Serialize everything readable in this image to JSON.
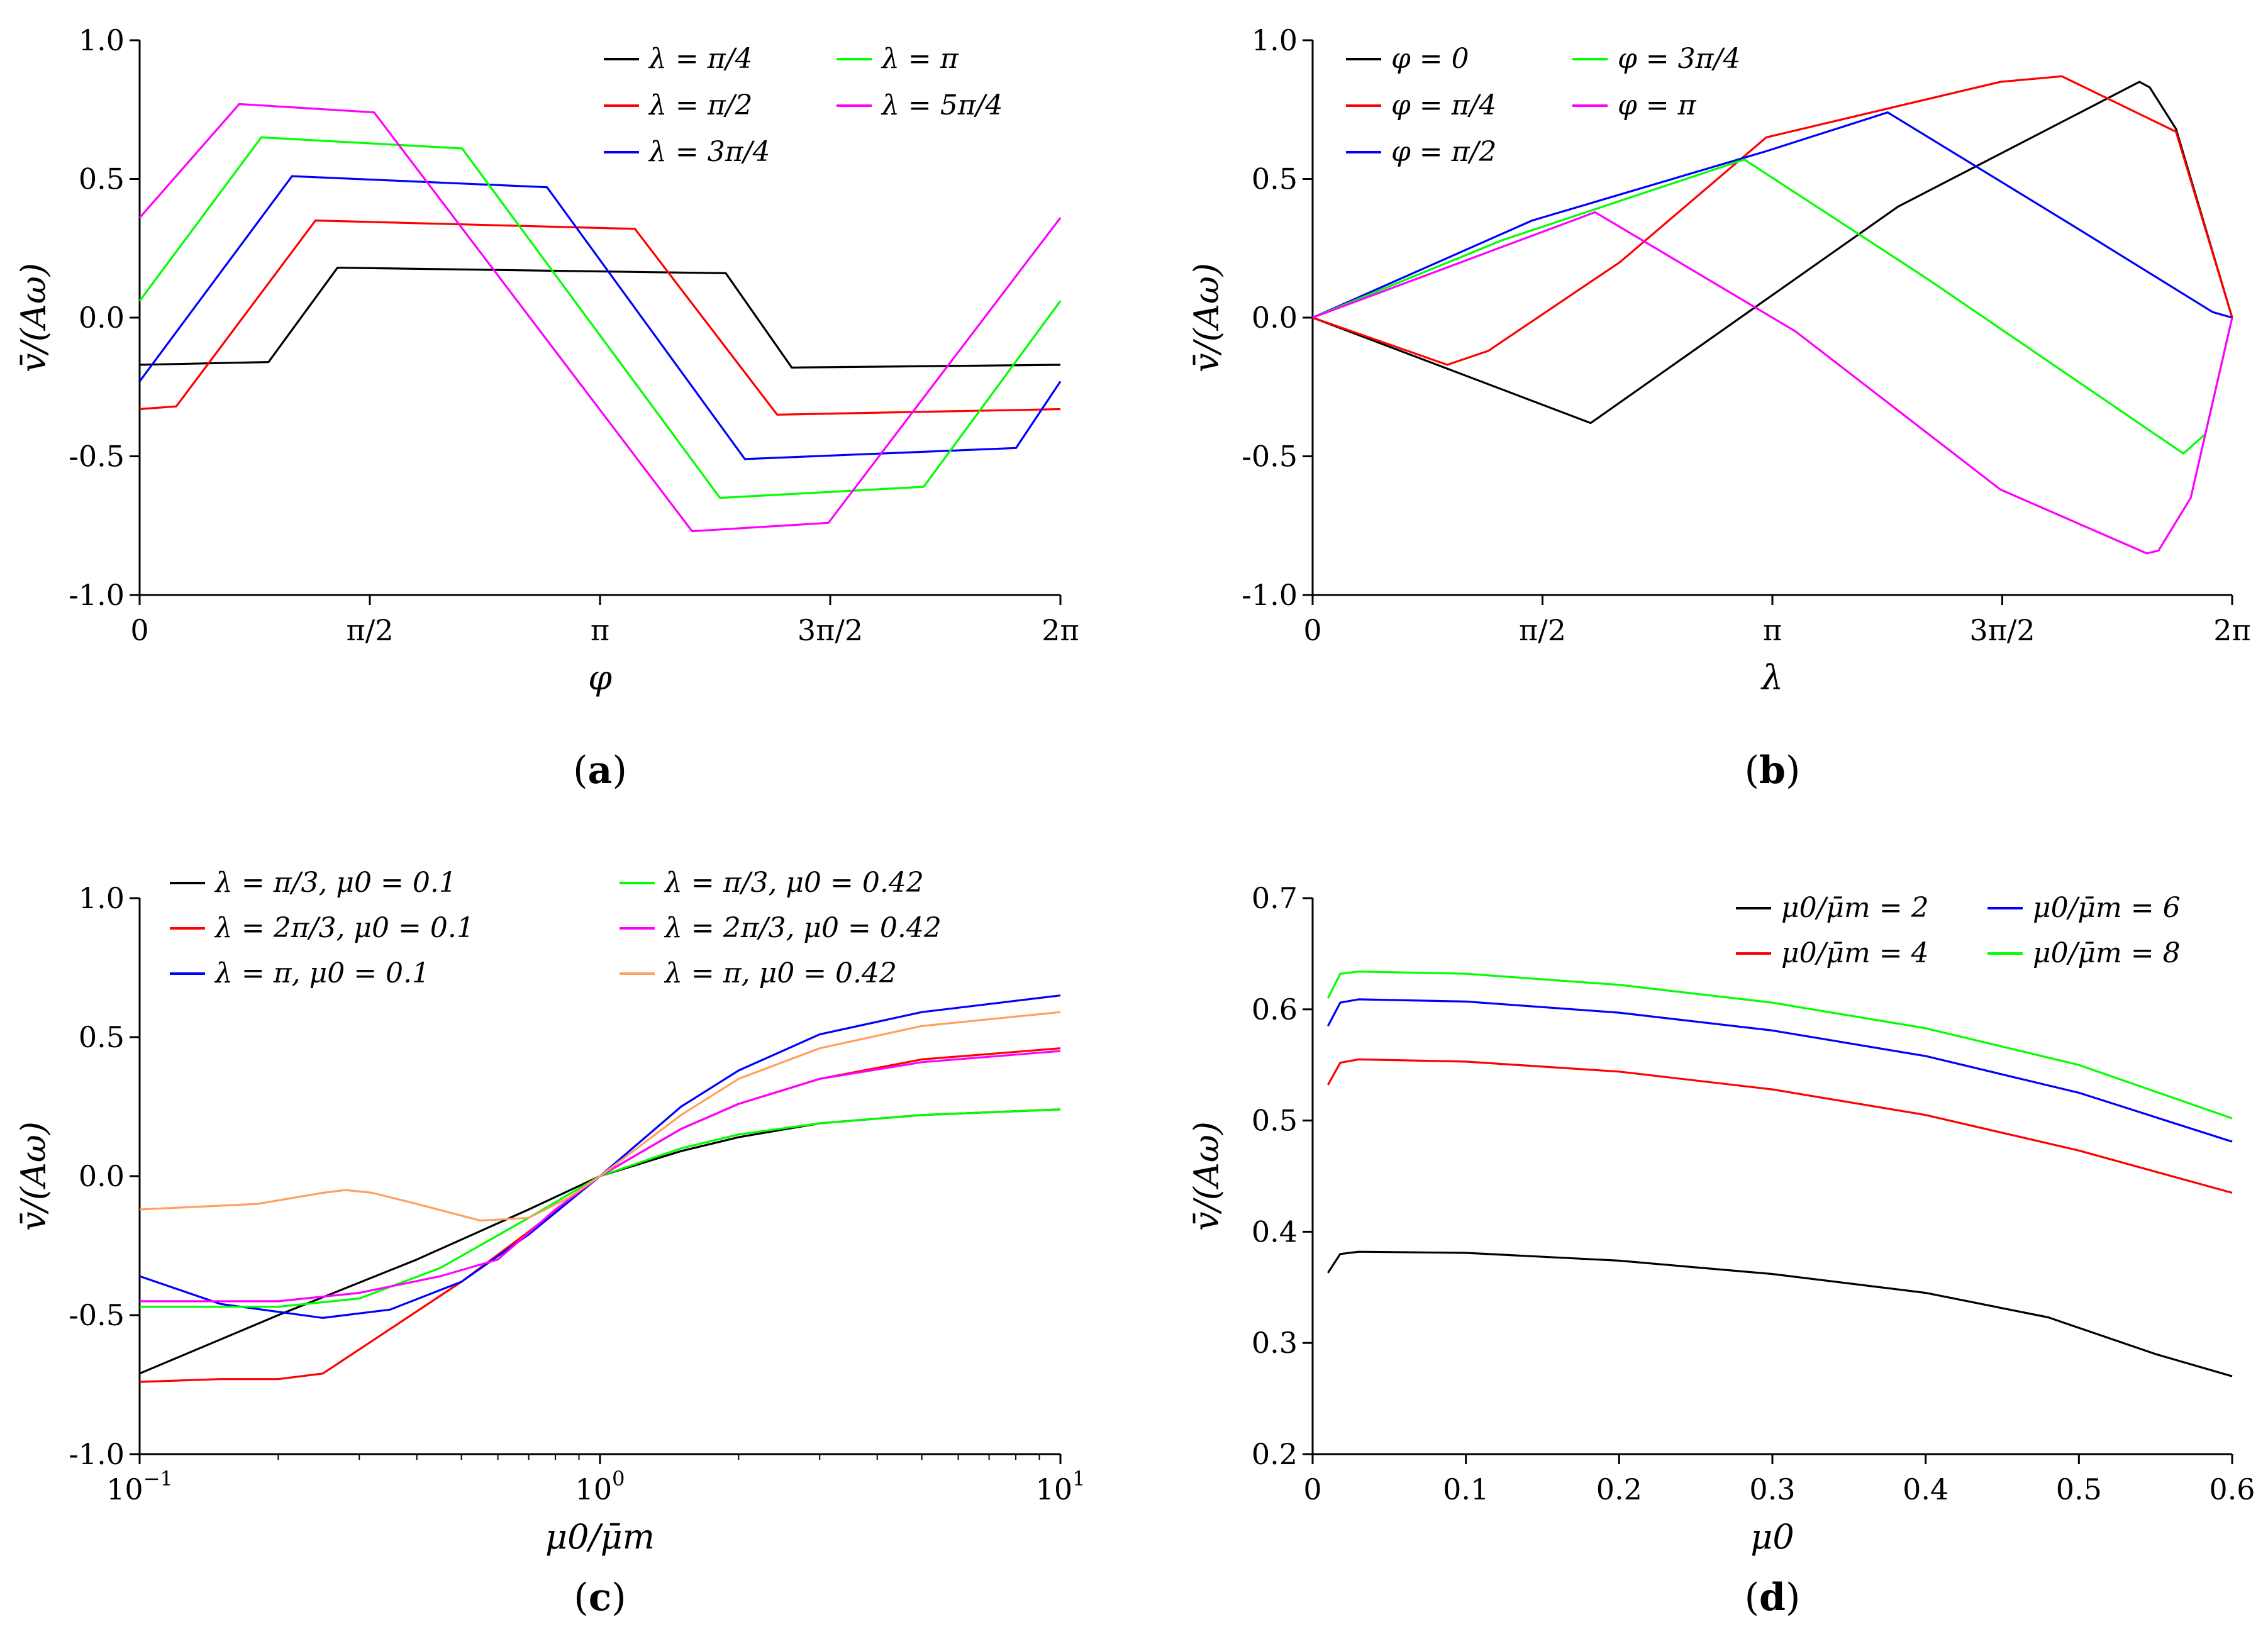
{
  "figure": {
    "captions": [
      "(a)",
      "(b)",
      "(c)",
      "(d)"
    ]
  },
  "chart_data": [
    {
      "type": "line",
      "panel": "a",
      "xlabel": "φ",
      "ylabel": "v̄/(Aω)",
      "xlim": [
        0,
        6.2832
      ],
      "ylim": [
        -1.0,
        1.0
      ],
      "xticks": [
        {
          "v": 0,
          "label": "0"
        },
        {
          "v": 1.5708,
          "label": "π/2"
        },
        {
          "v": 3.1416,
          "label": "π"
        },
        {
          "v": 4.7124,
          "label": "3π/2"
        },
        {
          "v": 6.2832,
          "label": "2π"
        }
      ],
      "yticks": [
        {
          "v": 1.0,
          "label": "1.0"
        },
        {
          "v": 0.5,
          "label": "0.5"
        },
        {
          "v": 0.0,
          "label": "0.0"
        },
        {
          "v": -0.5,
          "label": "-0.5"
        },
        {
          "v": -1.0,
          "label": "-1.0"
        }
      ],
      "legend_position": "top-right",
      "legend_columns": 2,
      "series": [
        {
          "name": "λ = π/4",
          "color": "#000000",
          "x": [
            0,
            0.88,
            1.35,
            4.0,
            4.45,
            6.2832
          ],
          "y": [
            -0.17,
            -0.16,
            0.18,
            0.16,
            -0.18,
            -0.17
          ]
        },
        {
          "name": "λ = π/2",
          "color": "#ff0000",
          "x": [
            0,
            0.25,
            1.2,
            3.38,
            4.35,
            6.2832
          ],
          "y": [
            -0.33,
            -0.32,
            0.35,
            0.32,
            -0.35,
            -0.33
          ]
        },
        {
          "name": "λ = 3π/4",
          "color": "#0000ff",
          "x": [
            0,
            1.04,
            2.78,
            4.13,
            5.98,
            6.2832
          ],
          "y": [
            -0.23,
            0.51,
            0.47,
            -0.51,
            -0.47,
            -0.23
          ]
        },
        {
          "name": "λ = π",
          "color": "#00ff00",
          "x": [
            0,
            0.83,
            2.2,
            3.96,
            5.35,
            6.2832
          ],
          "y": [
            0.06,
            0.65,
            0.61,
            -0.65,
            -0.61,
            0.06
          ]
        },
        {
          "name": "λ = 5π/4",
          "color": "#ff00ff",
          "x": [
            0,
            0.68,
            1.6,
            3.77,
            4.7,
            6.2832
          ],
          "y": [
            0.36,
            0.77,
            0.74,
            -0.77,
            -0.74,
            0.36
          ]
        }
      ]
    },
    {
      "type": "line",
      "panel": "b",
      "xlabel": "λ",
      "ylabel": "v̄/(Aω)",
      "xlim": [
        0,
        6.2832
      ],
      "ylim": [
        -1.0,
        1.0
      ],
      "xticks": [
        {
          "v": 0,
          "label": "0"
        },
        {
          "v": 1.5708,
          "label": "π/2"
        },
        {
          "v": 3.1416,
          "label": "π"
        },
        {
          "v": 4.7124,
          "label": "3π/2"
        },
        {
          "v": 6.2832,
          "label": "2π"
        }
      ],
      "yticks": [
        {
          "v": 1.0,
          "label": "1.0"
        },
        {
          "v": 0.5,
          "label": "0.5"
        },
        {
          "v": 0.0,
          "label": "0.0"
        },
        {
          "v": -0.5,
          "label": "-0.5"
        },
        {
          "v": -1.0,
          "label": "-1.0"
        }
      ],
      "legend_position": "top-left",
      "legend_columns": 2,
      "series": [
        {
          "name": "φ = 0",
          "color": "#000000",
          "x": [
            0,
            1.9,
            4.0,
            5.65,
            5.72,
            5.9,
            6.2832
          ],
          "y": [
            0,
            -0.38,
            0.4,
            0.85,
            0.83,
            0.68,
            0
          ]
        },
        {
          "name": "φ = π/4",
          "color": "#ff0000",
          "x": [
            0,
            0.92,
            1.2,
            2.1,
            3.1,
            4.7,
            5.12,
            5.9,
            6.2832
          ],
          "y": [
            0,
            -0.17,
            -0.12,
            0.2,
            0.65,
            0.85,
            0.87,
            0.67,
            0
          ]
        },
        {
          "name": "φ = π/2",
          "color": "#0000ff",
          "x": [
            0,
            1.5,
            3.1,
            3.93,
            5.2,
            6.15,
            6.2832
          ],
          "y": [
            0,
            0.35,
            0.6,
            0.74,
            0.33,
            0.02,
            0
          ]
        },
        {
          "name": "φ = 3π/4",
          "color": "#00ff00",
          "x": [
            0,
            1.3,
            2.95,
            4.2,
            5.95,
            6.1,
            6.2832
          ],
          "y": [
            0,
            0.28,
            0.57,
            0.14,
            -0.49,
            -0.42,
            0
          ]
        },
        {
          "name": "φ = π",
          "color": "#ff00ff",
          "x": [
            0,
            1.93,
            3.3,
            4.7,
            5.7,
            5.78,
            6.0,
            6.2832
          ],
          "y": [
            0,
            0.38,
            -0.05,
            -0.62,
            -0.85,
            -0.84,
            -0.65,
            0
          ]
        }
      ]
    },
    {
      "type": "line",
      "panel": "c",
      "xscale": "log",
      "xlabel": "μ0/μ̄m",
      "ylabel": "v̄/(Aω)",
      "xlim": [
        0.1,
        10
      ],
      "ylim": [
        -1.0,
        1.0
      ],
      "xticks": [
        {
          "v": 0.1,
          "base": "10",
          "exp": "−1"
        },
        {
          "v": 1,
          "base": "10",
          "exp": "0"
        },
        {
          "v": 10,
          "base": "10",
          "exp": "1"
        }
      ],
      "yticks": [
        {
          "v": 1.0,
          "label": "1.0"
        },
        {
          "v": 0.5,
          "label": "0.5"
        },
        {
          "v": 0.0,
          "label": "0.0"
        },
        {
          "v": -0.5,
          "label": "-0.5"
        },
        {
          "v": -1.0,
          "label": "-1.0"
        }
      ],
      "legend_position": "top-left",
      "legend_columns": 2,
      "series": [
        {
          "name": "λ = π/3, μ0 = 0.1",
          "color": "#000000",
          "x": [
            0.1,
            0.2,
            0.4,
            0.7,
            1.0,
            1.5,
            2,
            3,
            5,
            10
          ],
          "y": [
            -0.71,
            -0.5,
            -0.3,
            -0.12,
            0.0,
            0.09,
            0.14,
            0.19,
            0.22,
            0.24
          ]
        },
        {
          "name": "λ = 2π/3, μ0 = 0.1",
          "color": "#ff0000",
          "x": [
            0.1,
            0.15,
            0.2,
            0.25,
            0.35,
            0.5,
            0.7,
            1.0,
            1.5,
            2,
            3,
            5,
            10
          ],
          "y": [
            -0.74,
            -0.73,
            -0.73,
            -0.71,
            -0.55,
            -0.38,
            -0.2,
            0.0,
            0.17,
            0.26,
            0.35,
            0.42,
            0.46
          ]
        },
        {
          "name": "λ = π, μ0 = 0.1",
          "color": "#0000ff",
          "x": [
            0.1,
            0.15,
            0.25,
            0.35,
            0.5,
            0.7,
            1.0,
            1.5,
            2,
            3,
            5,
            10
          ],
          "y": [
            -0.36,
            -0.46,
            -0.51,
            -0.48,
            -0.38,
            -0.21,
            0.0,
            0.25,
            0.38,
            0.51,
            0.59,
            0.65
          ]
        },
        {
          "name": "λ = π/3, μ0 = 0.42",
          "color": "#00ff00",
          "x": [
            0.1,
            0.2,
            0.3,
            0.45,
            0.7,
            1.0,
            1.5,
            2,
            3,
            5,
            10
          ],
          "y": [
            -0.47,
            -0.47,
            -0.44,
            -0.33,
            -0.15,
            0.0,
            0.1,
            0.15,
            0.19,
            0.22,
            0.24
          ]
        },
        {
          "name": "λ = 2π/3, μ0 = 0.42",
          "color": "#ff00ff",
          "x": [
            0.1,
            0.2,
            0.3,
            0.45,
            0.6,
            0.8,
            1.0,
            1.5,
            2,
            3,
            5,
            10
          ],
          "y": [
            -0.45,
            -0.45,
            -0.42,
            -0.36,
            -0.3,
            -0.12,
            0.0,
            0.17,
            0.26,
            0.35,
            0.41,
            0.45
          ]
        },
        {
          "name": "λ = π, μ0 = 0.42",
          "color": "#ffa060",
          "x": [
            0.1,
            0.18,
            0.25,
            0.28,
            0.32,
            0.4,
            0.55,
            0.7,
            0.85,
            1.0,
            1.5,
            2,
            3,
            5,
            10
          ],
          "y": [
            -0.12,
            -0.1,
            -0.06,
            -0.05,
            -0.06,
            -0.1,
            -0.16,
            -0.15,
            -0.08,
            0.0,
            0.22,
            0.35,
            0.46,
            0.54,
            0.59
          ]
        }
      ]
    },
    {
      "type": "line",
      "panel": "d",
      "xlabel": "μ0",
      "ylabel": "v̄/(Aω)",
      "xlim": [
        0,
        0.6
      ],
      "ylim": [
        0.2,
        0.7
      ],
      "xticks": [
        {
          "v": 0,
          "label": "0"
        },
        {
          "v": 0.1,
          "label": "0.1"
        },
        {
          "v": 0.2,
          "label": "0.2"
        },
        {
          "v": 0.3,
          "label": "0.3"
        },
        {
          "v": 0.4,
          "label": "0.4"
        },
        {
          "v": 0.5,
          "label": "0.5"
        },
        {
          "v": 0.6,
          "label": "0.6"
        }
      ],
      "yticks": [
        {
          "v": 0.7,
          "label": "0.7"
        },
        {
          "v": 0.6,
          "label": "0.6"
        },
        {
          "v": 0.5,
          "label": "0.5"
        },
        {
          "v": 0.4,
          "label": "0.4"
        },
        {
          "v": 0.3,
          "label": "0.3"
        },
        {
          "v": 0.2,
          "label": "0.2"
        }
      ],
      "legend_position": "top-right",
      "legend_columns": 2,
      "series": [
        {
          "name": "μ0/μ̄m = 2",
          "color": "#000000",
          "x": [
            0.01,
            0.018,
            0.03,
            0.1,
            0.2,
            0.3,
            0.4,
            0.48,
            0.55,
            0.6
          ],
          "y": [
            0.363,
            0.38,
            0.382,
            0.381,
            0.374,
            0.362,
            0.345,
            0.323,
            0.29,
            0.27
          ]
        },
        {
          "name": "μ0/μ̄m = 4",
          "color": "#ff0000",
          "x": [
            0.01,
            0.018,
            0.03,
            0.1,
            0.2,
            0.3,
            0.4,
            0.5,
            0.6
          ],
          "y": [
            0.532,
            0.552,
            0.555,
            0.553,
            0.544,
            0.528,
            0.505,
            0.473,
            0.435
          ]
        },
        {
          "name": "μ0/μ̄m = 6",
          "color": "#0000ff",
          "x": [
            0.01,
            0.018,
            0.03,
            0.1,
            0.2,
            0.3,
            0.4,
            0.5,
            0.6
          ],
          "y": [
            0.585,
            0.606,
            0.609,
            0.607,
            0.597,
            0.581,
            0.558,
            0.525,
            0.481
          ]
        },
        {
          "name": "μ0/μ̄m = 8",
          "color": "#00ff00",
          "x": [
            0.01,
            0.018,
            0.03,
            0.1,
            0.2,
            0.3,
            0.4,
            0.5,
            0.6
          ],
          "y": [
            0.61,
            0.632,
            0.634,
            0.632,
            0.622,
            0.606,
            0.583,
            0.55,
            0.502
          ]
        }
      ]
    }
  ]
}
